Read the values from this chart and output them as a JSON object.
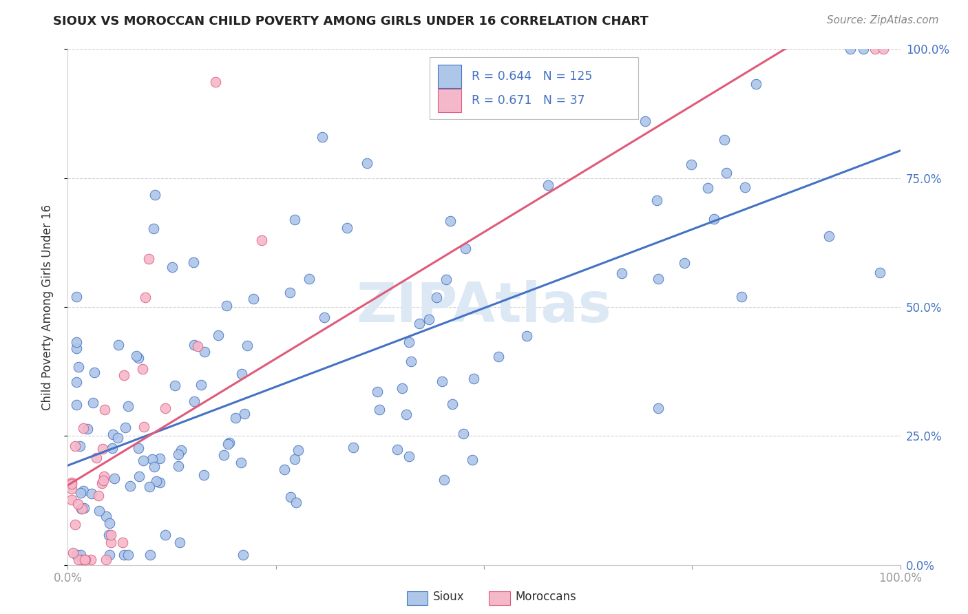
{
  "title": "SIOUX VS MOROCCAN CHILD POVERTY AMONG GIRLS UNDER 16 CORRELATION CHART",
  "source": "Source: ZipAtlas.com",
  "ylabel": "Child Poverty Among Girls Under 16",
  "sioux_R": 0.644,
  "sioux_N": 125,
  "moroccan_R": 0.671,
  "moroccan_N": 37,
  "sioux_color": "#aec6e8",
  "moroccan_color": "#f4b8cb",
  "sioux_line_color": "#4472c4",
  "moroccan_line_color": "#e05a7a",
  "legend_text_color": "#4472c4",
  "watermark_color": "#dce9f5",
  "background_color": "#ffffff",
  "sioux_seed": 12345,
  "moroccan_seed": 99,
  "title_fontsize": 13,
  "source_fontsize": 11,
  "tick_fontsize": 12,
  "ylabel_fontsize": 12
}
